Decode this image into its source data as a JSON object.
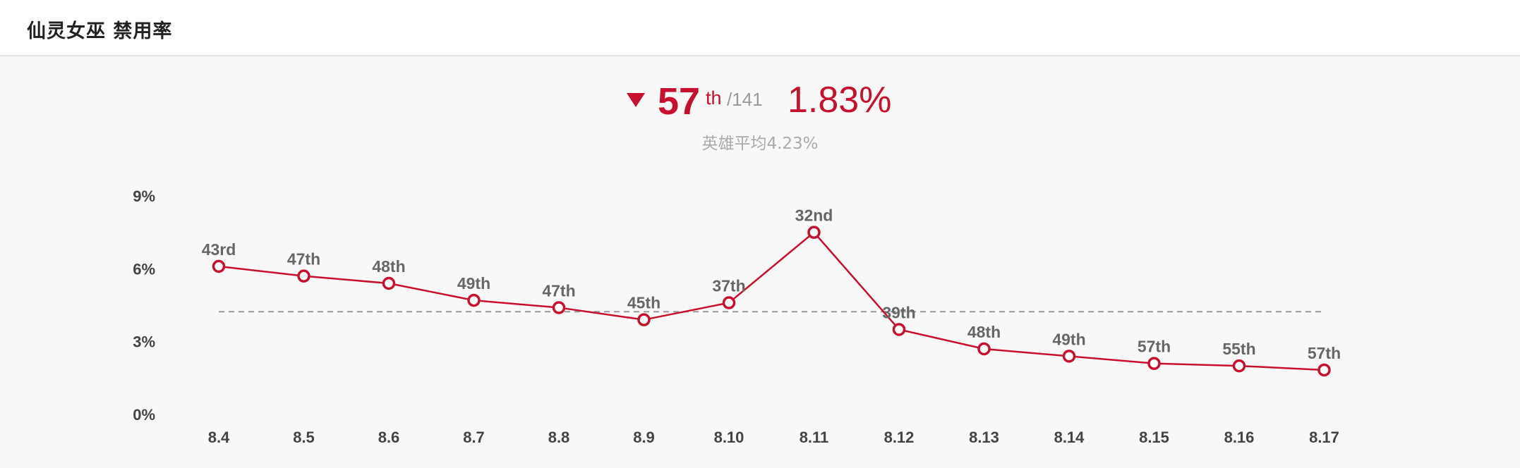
{
  "header": {
    "title": "仙灵女巫 禁用率"
  },
  "summary": {
    "trend_icon": "triangle-down-icon",
    "rank": "57",
    "rank_suffix": "th",
    "rank_total": "/141",
    "rate": "1.83%",
    "average_label": "英雄平均",
    "average_value": "4.23%"
  },
  "colors": {
    "accent": "#c8102e",
    "average_line": "#999999",
    "header_bg": "#ffffff",
    "chart_bg": "#f8f8f8"
  },
  "chart_data": {
    "type": "line",
    "categories": [
      "8.4",
      "8.5",
      "8.6",
      "8.7",
      "8.8",
      "8.9",
      "8.10",
      "8.11",
      "8.12",
      "8.13",
      "8.14",
      "8.15",
      "8.16",
      "8.17"
    ],
    "series": [
      {
        "values": [
          6.1,
          5.7,
          5.4,
          4.7,
          4.4,
          3.9,
          4.6,
          7.5,
          3.5,
          2.7,
          2.4,
          2.1,
          2.0,
          1.83
        ],
        "labels": [
          "43rd",
          "47th",
          "48th",
          "49th",
          "47th",
          "45th",
          "37th",
          "32nd",
          "39th",
          "48th",
          "49th",
          "57th",
          "55th",
          "57th"
        ]
      }
    ],
    "reference_line": 4.23,
    "yticks": [
      "0%",
      "3%",
      "6%",
      "9%"
    ],
    "ytick_values": [
      0,
      3,
      6,
      9
    ],
    "ylim": [
      0,
      9
    ],
    "grid": false,
    "legend": "none"
  }
}
